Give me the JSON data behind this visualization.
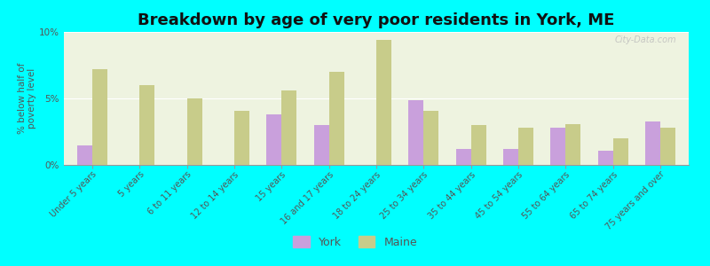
{
  "title": "Breakdown by age of very poor residents in York, ME",
  "ylabel": "% below half of\npoverty level",
  "categories": [
    "Under 5 years",
    "5 years",
    "6 to 11 years",
    "12 to 14 years",
    "15 years",
    "16 and 17 years",
    "18 to 24 years",
    "25 to 34 years",
    "35 to 44 years",
    "45 to 54 years",
    "55 to 64 years",
    "65 to 74 years",
    "75 years and over"
  ],
  "york_values": [
    1.5,
    0.0,
    0.0,
    0.0,
    3.8,
    3.0,
    0.0,
    4.9,
    1.2,
    1.2,
    2.8,
    1.1,
    3.3
  ],
  "maine_values": [
    7.2,
    6.0,
    5.0,
    4.1,
    5.6,
    7.0,
    9.4,
    4.1,
    3.0,
    2.8,
    3.1,
    2.0,
    2.8
  ],
  "york_color": "#c9a0dc",
  "maine_color": "#c8cc8a",
  "background_color": "#00ffff",
  "plot_bg_color": "#eef3e0",
  "ylim": [
    0,
    10
  ],
  "yticks": [
    0,
    5,
    10
  ],
  "ytick_labels": [
    "0%",
    "5%",
    "10%"
  ],
  "title_fontsize": 13,
  "label_fontsize": 7,
  "ylabel_fontsize": 7.5,
  "watermark": "City-Data.com"
}
